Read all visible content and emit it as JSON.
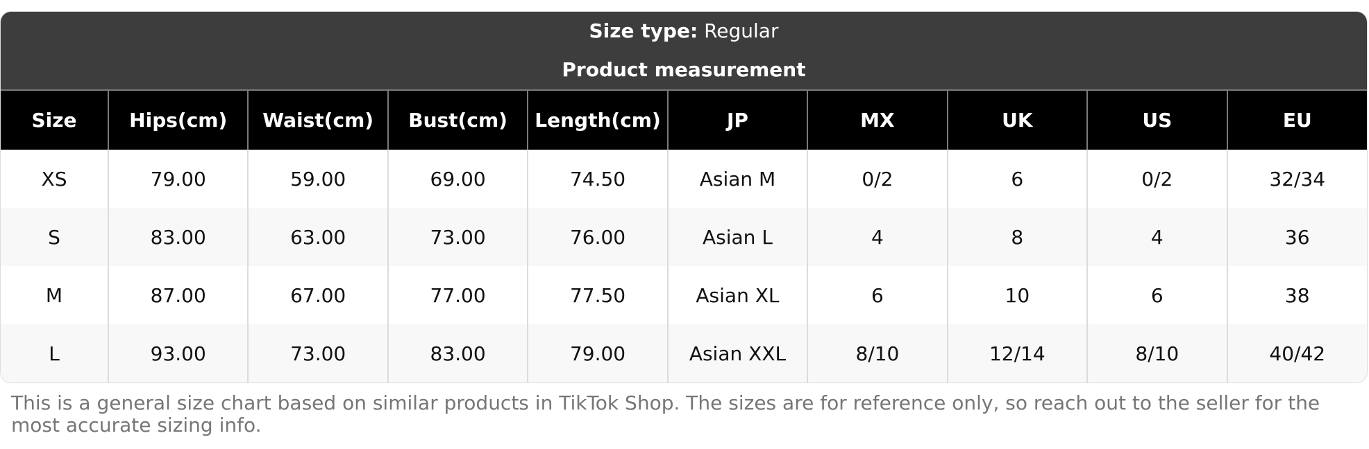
{
  "size_type_label": "Size type:",
  "size_type_value": "Regular",
  "section_title": "Product measurement",
  "columns": [
    "Size",
    "Hips(cm)",
    "Waist(cm)",
    "Bust(cm)",
    "Length(cm)",
    "JP",
    "MX",
    "UK",
    "US",
    "EU"
  ],
  "rows": [
    [
      "XS",
      "79.00",
      "59.00",
      "69.00",
      "74.50",
      "Asian M",
      "0/2",
      "6",
      "0/2",
      "32/34"
    ],
    [
      "S",
      "83.00",
      "63.00",
      "73.00",
      "76.00",
      "Asian L",
      "4",
      "8",
      "4",
      "36"
    ],
    [
      "M",
      "87.00",
      "67.00",
      "77.00",
      "77.50",
      "Asian XL",
      "6",
      "10",
      "6",
      "38"
    ],
    [
      "L",
      "93.00",
      "73.00",
      "83.00",
      "79.00",
      "Asian XXL",
      "8/10",
      "12/14",
      "8/10",
      "40/42"
    ]
  ],
  "footnote": "This is a general size chart based on similar products in TikTok Shop. The sizes are for reference only, so reach out to the seller for the most accurate sizing info.",
  "colors": {
    "header_bg": "#3d3d3d",
    "column_header_bg": "#000000",
    "alt_row_bg": "#f8f8f8",
    "footnote": "#767676"
  }
}
